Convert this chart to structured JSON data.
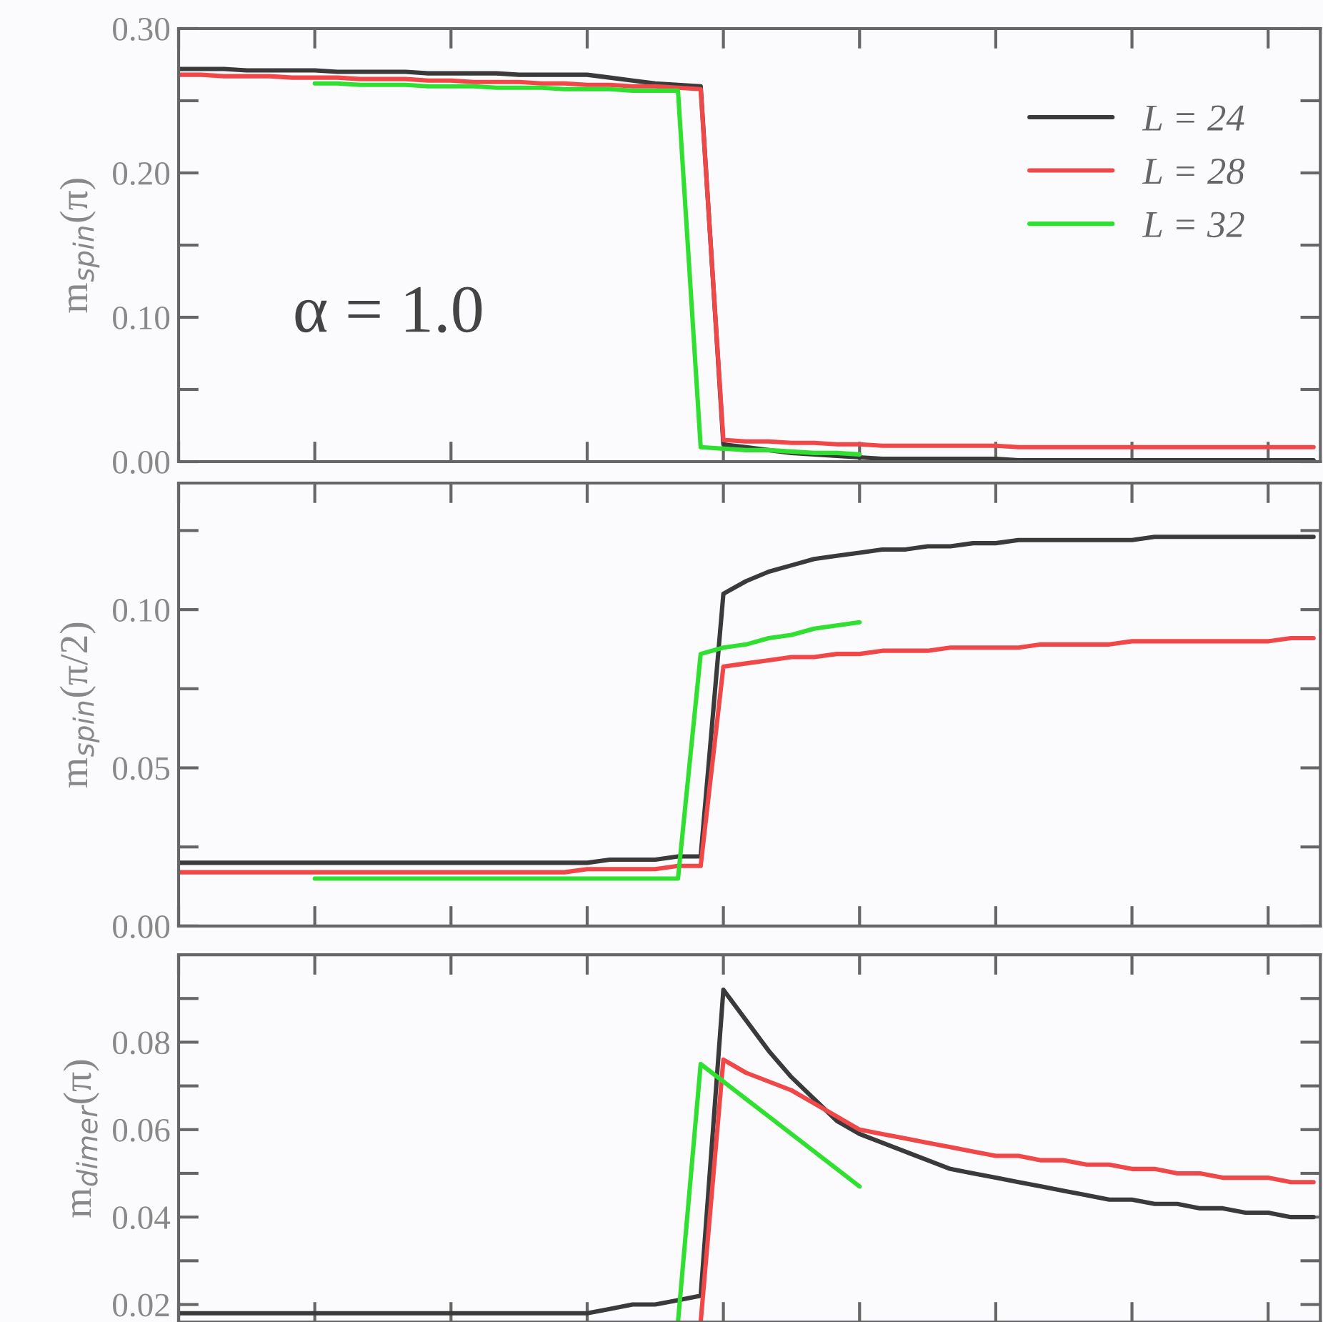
{
  "chart_data": [
    {
      "type": "line",
      "ylabel": "m$_{spin}$(π)",
      "tick_labels": "y",
      "grid": false,
      "legend": "top right",
      "annotations": [
        "α = 1.0"
      ],
      "categories": [
        null,
        null,
        null,
        null,
        null,
        null,
        null,
        null,
        null,
        null,
        null,
        null,
        null,
        null,
        null,
        null,
        null,
        null,
        null,
        null,
        null,
        null,
        null,
        null,
        null,
        null,
        null,
        null,
        null,
        null,
        null,
        null,
        null,
        null,
        null,
        null,
        null,
        null,
        null,
        null,
        null,
        null,
        null,
        null,
        null,
        null,
        null,
        null,
        null,
        null,
        null
      ],
      "ylim": [
        0,
        0.3
      ],
      "yticks": [
        {
          "value": 0,
          "label": "0.00"
        },
        {
          "value": 0.05,
          "label": null
        },
        {
          "value": 0.1,
          "label": "0.10"
        },
        {
          "value": 0.15,
          "label": null
        },
        {
          "value": 0.2,
          "label": "0.20"
        },
        {
          "value": 0.25,
          "label": null
        },
        {
          "value": 0.3,
          "label": "0.30"
        }
      ],
      "series": [
        {
          "name": "L = 24",
          "color": "#3a3a3a",
          "values": [
            0.272,
            0.272,
            0.272,
            0.271,
            0.271,
            0.271,
            0.271,
            0.27,
            0.27,
            0.27,
            0.27,
            0.269,
            0.269,
            0.269,
            0.269,
            0.268,
            0.268,
            0.268,
            0.268,
            0.266,
            0.264,
            0.262,
            0.261,
            0.26,
            0.012,
            0.01,
            0.008,
            0.006,
            0.005,
            0.004,
            0.003,
            0.002,
            0.002,
            0.002,
            0.002,
            0.002,
            0.002,
            0.001,
            0.001,
            0.001,
            0.001,
            0.001,
            0.001,
            0.001,
            0.001,
            0.001,
            0.001,
            0.001,
            0.001,
            0.001,
            0.001
          ]
        },
        {
          "name": "L = 28",
          "color": "#f04848",
          "values": [
            0.268,
            0.268,
            0.267,
            0.267,
            0.267,
            0.266,
            0.266,
            0.266,
            0.265,
            0.265,
            0.265,
            0.264,
            0.264,
            0.263,
            0.263,
            0.263,
            0.262,
            0.262,
            0.261,
            0.261,
            0.26,
            0.26,
            0.259,
            0.258,
            0.015,
            0.014,
            0.014,
            0.013,
            0.013,
            0.012,
            0.012,
            0.011,
            0.011,
            0.011,
            0.011,
            0.011,
            0.011,
            0.01,
            0.01,
            0.01,
            0.01,
            0.01,
            0.01,
            0.01,
            0.01,
            0.01,
            0.01,
            0.01,
            0.01,
            0.01,
            0.01
          ]
        },
        {
          "name": "L = 32",
          "color": "#30e030",
          "values": [
            null,
            null,
            null,
            null,
            null,
            null,
            0.262,
            0.262,
            0.261,
            0.261,
            0.261,
            0.26,
            0.26,
            0.26,
            0.259,
            0.259,
            0.259,
            0.258,
            0.258,
            0.258,
            0.257,
            0.257,
            0.257,
            0.01,
            0.009,
            0.008,
            0.008,
            0.007,
            0.006,
            0.006,
            0.005,
            null,
            null,
            null,
            null,
            null,
            null,
            null,
            null,
            null,
            null,
            null,
            null,
            null,
            null,
            null,
            null,
            null,
            null,
            null,
            null
          ]
        }
      ]
    },
    {
      "type": "line",
      "ylabel": "m$_{spin}$(π/2)",
      "tick_labels": "y",
      "grid": false,
      "categories": [
        null,
        null,
        null,
        null,
        null,
        null,
        null,
        null,
        null,
        null,
        null,
        null,
        null,
        null,
        null,
        null,
        null,
        null,
        null,
        null,
        null,
        null,
        null,
        null,
        null,
        null,
        null,
        null,
        null,
        null,
        null,
        null,
        null,
        null,
        null,
        null,
        null,
        null,
        null,
        null,
        null,
        null,
        null,
        null,
        null,
        null,
        null,
        null,
        null,
        null,
        null
      ],
      "ylim": [
        0,
        0.14
      ],
      "yticks": [
        {
          "value": 0,
          "label": "0.00"
        },
        {
          "value": 0.025,
          "label": null
        },
        {
          "value": 0.05,
          "label": "0.05"
        },
        {
          "value": 0.075,
          "label": null
        },
        {
          "value": 0.1,
          "label": "0.10"
        },
        {
          "value": 0.125,
          "label": null
        }
      ],
      "series": [
        {
          "color": "#3a3a3a",
          "values": [
            0.02,
            0.02,
            0.02,
            0.02,
            0.02,
            0.02,
            0.02,
            0.02,
            0.02,
            0.02,
            0.02,
            0.02,
            0.02,
            0.02,
            0.02,
            0.02,
            0.02,
            0.02,
            0.02,
            0.021,
            0.021,
            0.021,
            0.022,
            0.022,
            0.105,
            0.109,
            0.112,
            0.114,
            0.116,
            0.117,
            0.118,
            0.119,
            0.119,
            0.12,
            0.12,
            0.121,
            0.121,
            0.122,
            0.122,
            0.122,
            0.122,
            0.122,
            0.122,
            0.123,
            0.123,
            0.123,
            0.123,
            0.123,
            0.123,
            0.123,
            0.123
          ]
        },
        {
          "color": "#f04848",
          "values": [
            0.017,
            0.017,
            0.017,
            0.017,
            0.017,
            0.017,
            0.017,
            0.017,
            0.017,
            0.017,
            0.017,
            0.017,
            0.017,
            0.017,
            0.017,
            0.017,
            0.017,
            0.017,
            0.018,
            0.018,
            0.018,
            0.018,
            0.019,
            0.019,
            0.082,
            0.083,
            0.084,
            0.085,
            0.085,
            0.086,
            0.086,
            0.087,
            0.087,
            0.087,
            0.088,
            0.088,
            0.088,
            0.088,
            0.089,
            0.089,
            0.089,
            0.089,
            0.09,
            0.09,
            0.09,
            0.09,
            0.09,
            0.09,
            0.09,
            0.091,
            0.091
          ]
        },
        {
          "color": "#30e030",
          "values": [
            null,
            null,
            null,
            null,
            null,
            null,
            0.015,
            0.015,
            0.015,
            0.015,
            0.015,
            0.015,
            0.015,
            0.015,
            0.015,
            0.015,
            0.015,
            0.015,
            0.015,
            0.015,
            0.015,
            0.015,
            0.015,
            0.086,
            0.088,
            0.089,
            0.091,
            0.092,
            0.094,
            0.095,
            0.096,
            null,
            null,
            null,
            null,
            null,
            null,
            null,
            null,
            null,
            null,
            null,
            null,
            null,
            null,
            null,
            null,
            null,
            null,
            null,
            null
          ]
        }
      ]
    },
    {
      "type": "line",
      "ylabel": "m$_{dimer}$(π)",
      "tick_labels": "y",
      "grid": false,
      "categories": [
        null,
        null,
        null,
        null,
        null,
        null,
        null,
        null,
        null,
        null,
        null,
        null,
        null,
        null,
        null,
        null,
        null,
        null,
        null,
        null,
        null,
        null,
        null,
        null,
        null,
        null,
        null,
        null,
        null,
        null,
        null,
        null,
        null,
        null,
        null,
        null,
        null,
        null,
        null,
        null,
        null,
        null,
        null,
        null,
        null,
        null,
        null,
        null,
        null,
        null,
        null
      ],
      "ylim": [
        0.016,
        0.1
      ],
      "yticks": [
        {
          "value": 0.02,
          "label": "0.02"
        },
        {
          "value": 0.03,
          "label": null
        },
        {
          "value": 0.04,
          "label": "0.04"
        },
        {
          "value": 0.05,
          "label": null
        },
        {
          "value": 0.06,
          "label": "0.06"
        },
        {
          "value": 0.07,
          "label": null
        },
        {
          "value": 0.08,
          "label": "0.08"
        },
        {
          "value": 0.09,
          "label": null
        }
      ],
      "series": [
        {
          "color": "#3a3a3a",
          "values": [
            0.018,
            0.018,
            0.018,
            0.018,
            0.018,
            0.018,
            0.018,
            0.018,
            0.018,
            0.018,
            0.018,
            0.018,
            0.018,
            0.018,
            0.018,
            0.018,
            0.018,
            0.018,
            0.018,
            0.019,
            0.02,
            0.02,
            0.021,
            0.022,
            0.092,
            0.085,
            0.078,
            0.072,
            0.067,
            0.062,
            0.059,
            0.057,
            0.055,
            0.053,
            0.051,
            0.05,
            0.049,
            0.048,
            0.047,
            0.046,
            0.045,
            0.044,
            0.044,
            0.043,
            0.043,
            0.042,
            0.042,
            0.041,
            0.041,
            0.04,
            0.04
          ]
        },
        {
          "color": "#f04848",
          "values": [
            null,
            null,
            null,
            null,
            null,
            null,
            null,
            null,
            null,
            null,
            null,
            null,
            null,
            null,
            null,
            null,
            null,
            null,
            null,
            null,
            null,
            null,
            null,
            0.016,
            0.076,
            0.073,
            0.071,
            0.069,
            0.066,
            0.063,
            0.06,
            0.059,
            0.058,
            0.057,
            0.056,
            0.055,
            0.054,
            0.054,
            0.053,
            0.053,
            0.052,
            0.052,
            0.051,
            0.051,
            0.05,
            0.05,
            0.049,
            0.049,
            0.049,
            0.048,
            0.048
          ]
        },
        {
          "color": "#30e030",
          "values": [
            null,
            null,
            null,
            null,
            null,
            null,
            null,
            null,
            null,
            null,
            null,
            null,
            null,
            null,
            null,
            null,
            null,
            null,
            null,
            null,
            null,
            null,
            0.016,
            0.075,
            0.071,
            0.067,
            0.063,
            0.059,
            0.055,
            0.051,
            0.047,
            null,
            null,
            null,
            null,
            null,
            null,
            null,
            null,
            null,
            null,
            null,
            null,
            null,
            null,
            null,
            null,
            null,
            null,
            null,
            null
          ]
        }
      ]
    }
  ]
}
